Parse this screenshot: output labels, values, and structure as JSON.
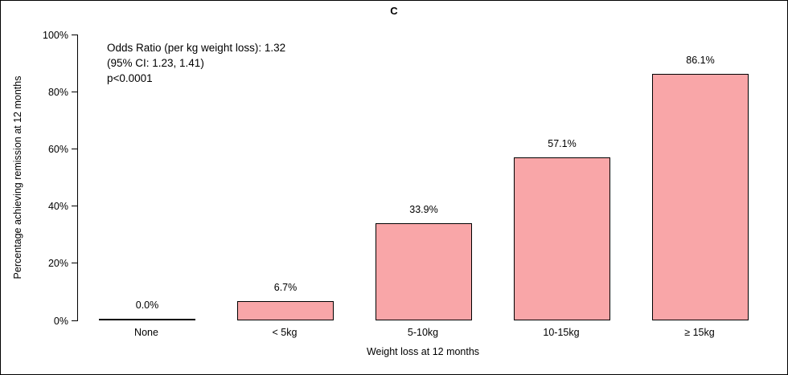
{
  "title": "C",
  "annotation": {
    "line1": "Odds Ratio (per kg weight loss): 1.32",
    "line2": "(95% CI: 1.23, 1.41)",
    "line3": "p<0.0001"
  },
  "chart_data": {
    "type": "bar",
    "title": "C",
    "categories": [
      "None",
      "< 5kg",
      "5-10kg",
      "10-15kg",
      "≥ 15kg"
    ],
    "values": [
      0.0,
      6.7,
      33.9,
      57.1,
      86.1
    ],
    "value_labels": [
      "0.0%",
      "6.7%",
      "33.9%",
      "57.1%",
      "86.1%"
    ],
    "xlabel": "Weight loss at 12 months",
    "ylabel": "Percentage achieving remission at 12 months",
    "ylim": [
      0,
      100
    ],
    "ytick_values": [
      0,
      20,
      40,
      60,
      80,
      100
    ],
    "ytick_labels": [
      "0%",
      "20%",
      "40%",
      "60%",
      "80%",
      "100%"
    ],
    "grid": false,
    "legend": "none",
    "bar_fill_color": "#f9a6a8",
    "bar_border_color": "#000000",
    "annotation_text": "Odds Ratio (per kg weight loss): 1.32\n(95% CI: 1.23, 1.41)\np<0.0001"
  }
}
